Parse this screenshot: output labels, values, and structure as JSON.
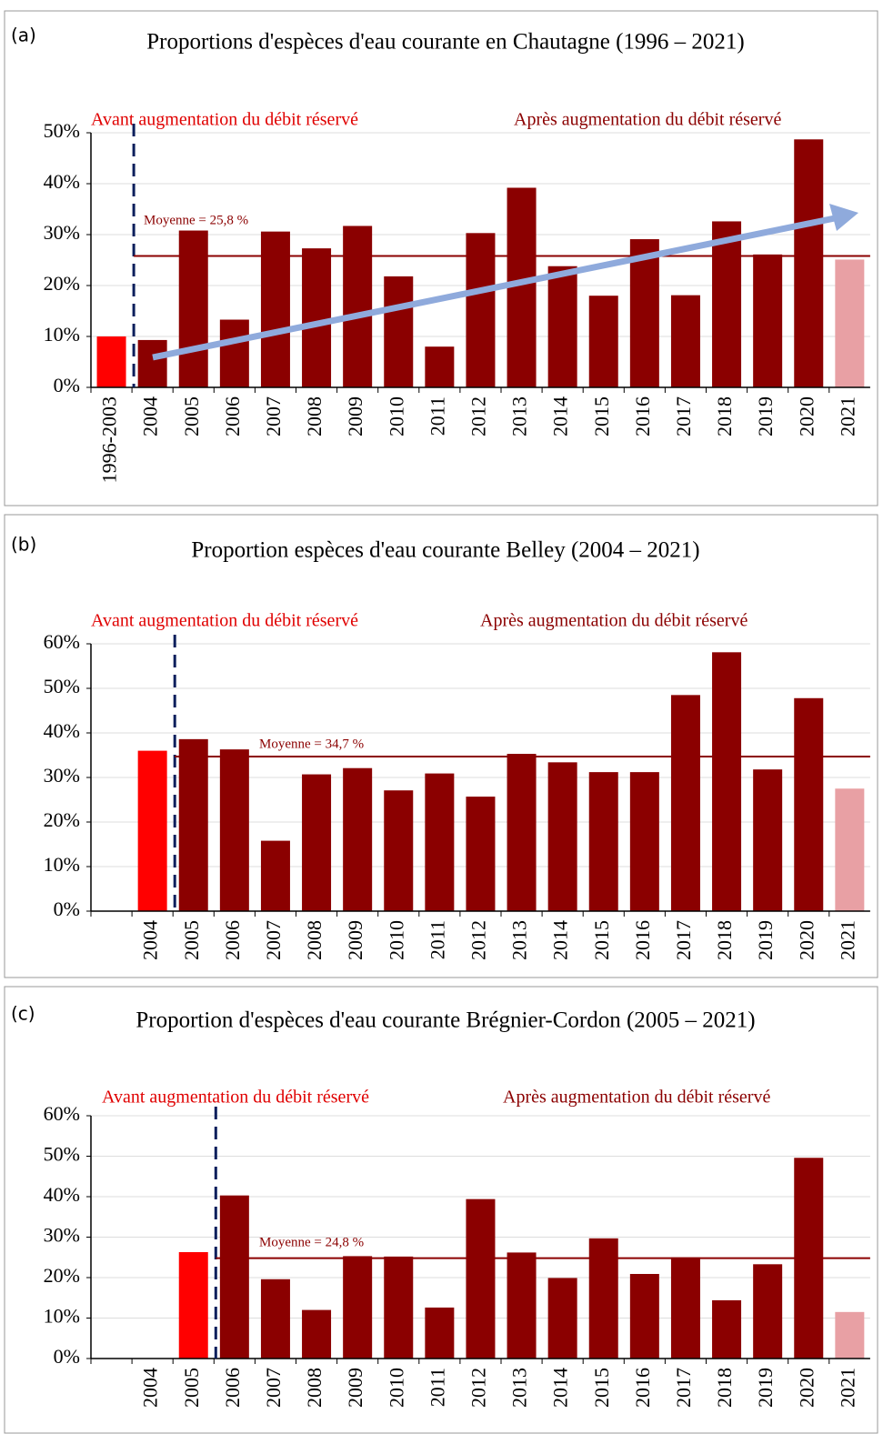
{
  "chart_data": [
    {
      "type": "bar",
      "panel": "(a)",
      "title": "Proportions d'espèces d'eau courante en Chautagne (1996 – 2021)",
      "annotations": [
        "Avant augmentation du débit réservé",
        "Après augmentation du débit réservé"
      ],
      "categories": [
        "1996-2003",
        "2004",
        "2005",
        "2006",
        "2007",
        "2008",
        "2009",
        "2010",
        "2011",
        "2012",
        "2013",
        "2014",
        "2015",
        "2016",
        "2017",
        "2018",
        "2019",
        "2020",
        "2021"
      ],
      "values": [
        10,
        9.3,
        30.8,
        13.3,
        30.6,
        27.3,
        31.7,
        21.8,
        8,
        30.3,
        39.2,
        23.8,
        18,
        29.1,
        18.1,
        32.6,
        26.1,
        48.7,
        25.1
      ],
      "colors": [
        "#ff0000",
        "#8b0000",
        "#8b0000",
        "#8b0000",
        "#8b0000",
        "#8b0000",
        "#8b0000",
        "#8b0000",
        "#8b0000",
        "#8b0000",
        "#8b0000",
        "#8b0000",
        "#8b0000",
        "#8b0000",
        "#8b0000",
        "#8b0000",
        "#8b0000",
        "#8b0000",
        "#e8a0a4"
      ],
      "mean": 25.8,
      "mean_label": "Moyenne = 25,8 %",
      "ylim": [
        0,
        50
      ],
      "yticks": [
        {
          "value": 0,
          "label": "0%"
        },
        {
          "value": 10,
          "label": "10%"
        },
        {
          "value": 20,
          "label": "20%"
        },
        {
          "value": 30,
          "label": "30%"
        },
        {
          "value": 40,
          "label": "40%"
        },
        {
          "value": 50,
          "label": "50%"
        }
      ],
      "grid": true
    },
    {
      "type": "bar",
      "panel": "(b)",
      "title": "Proportion espèces d'eau courante Belley (2004 – 2021)",
      "annotations": [
        "Avant augmentation du débit réservé",
        "Après augmentation du débit réservé"
      ],
      "categories": [
        null,
        "2004",
        "2005",
        "2006",
        "2007",
        "2008",
        "2009",
        "2010",
        "2011",
        "2012",
        "2013",
        "2014",
        "2015",
        "2016",
        "2017",
        "2018",
        "2019",
        "2020",
        "2021"
      ],
      "values": [
        null,
        36,
        38.6,
        36.3,
        15.8,
        30.7,
        32.1,
        27.1,
        30.9,
        25.7,
        35.3,
        33.4,
        31.2,
        31.2,
        48.5,
        58.1,
        31.8,
        47.8,
        27.5
      ],
      "colors": [
        "#8b0000",
        "#ff0000",
        "#8b0000",
        "#8b0000",
        "#8b0000",
        "#8b0000",
        "#8b0000",
        "#8b0000",
        "#8b0000",
        "#8b0000",
        "#8b0000",
        "#8b0000",
        "#8b0000",
        "#8b0000",
        "#8b0000",
        "#8b0000",
        "#8b0000",
        "#8b0000",
        "#e8a0a4"
      ],
      "mean": 34.7,
      "mean_label": "Moyenne = 34,7 %",
      "ylim": [
        0,
        60
      ],
      "yticks": [
        {
          "value": 0,
          "label": "0%"
        },
        {
          "value": 10,
          "label": "10%"
        },
        {
          "value": 20,
          "label": "20%"
        },
        {
          "value": 30,
          "label": "30%"
        },
        {
          "value": 40,
          "label": "40%"
        },
        {
          "value": 50,
          "label": "50%"
        },
        {
          "value": 60,
          "label": "60%"
        }
      ],
      "grid": true
    },
    {
      "type": "bar",
      "panel": "(c)",
      "title": "Proportion d'espèces d'eau courante Brégnier-Cordon (2005 – 2021)",
      "annotations": [
        "Avant augmentation du débit réservé",
        "Après augmentation du débit réservé"
      ],
      "categories": [
        null,
        "2004",
        "2005",
        "2006",
        "2007",
        "2008",
        "2009",
        "2010",
        "2011",
        "2012",
        "2013",
        "2014",
        "2015",
        "2016",
        "2017",
        "2018",
        "2019",
        "2020",
        "2021"
      ],
      "values": [
        null,
        null,
        26.3,
        40.3,
        19.6,
        12,
        25.3,
        25.2,
        12.6,
        39.4,
        26.2,
        19.9,
        29.7,
        20.9,
        25,
        14.4,
        23.3,
        49.6,
        11.5
      ],
      "colors": [
        "#8b0000",
        "#8b0000",
        "#ff0000",
        "#8b0000",
        "#8b0000",
        "#8b0000",
        "#8b0000",
        "#8b0000",
        "#8b0000",
        "#8b0000",
        "#8b0000",
        "#8b0000",
        "#8b0000",
        "#8b0000",
        "#8b0000",
        "#8b0000",
        "#8b0000",
        "#8b0000",
        "#e8a0a4"
      ],
      "mean": 24.8,
      "mean_label": "Moyenne = 24,8 %",
      "ylim": [
        0,
        60
      ],
      "yticks": [
        {
          "value": 0,
          "label": "0%"
        },
        {
          "value": 10,
          "label": "10%"
        },
        {
          "value": 20,
          "label": "20%"
        },
        {
          "value": 30,
          "label": "30%"
        },
        {
          "value": 40,
          "label": "40%"
        },
        {
          "value": 50,
          "label": "50%"
        },
        {
          "value": 60,
          "label": "60%"
        }
      ],
      "grid": true
    }
  ]
}
